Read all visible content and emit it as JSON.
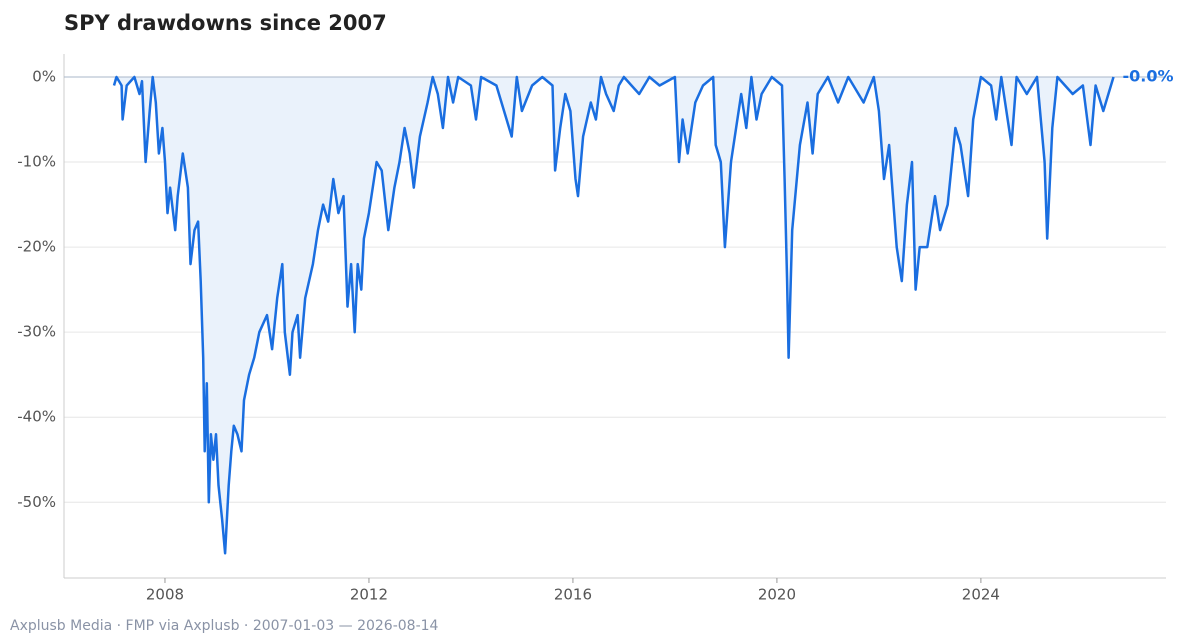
{
  "chart_data": {
    "type": "line",
    "title": "SPY drawdowns since 2007",
    "footer": "Axplusb Media · FMP via Axplusb · 2007-01-03 — 2026-08-14",
    "x": [
      2007.0,
      2007.05,
      2007.15,
      2007.17,
      2007.25,
      2007.4,
      2007.5,
      2007.55,
      2007.62,
      2007.7,
      2007.76,
      2007.82,
      2007.88,
      2007.95,
      2008.0,
      2008.05,
      2008.1,
      2008.2,
      2008.25,
      2008.35,
      2008.45,
      2008.5,
      2008.58,
      2008.65,
      2008.7,
      2008.75,
      2008.78,
      2008.82,
      2008.86,
      2008.9,
      2008.95,
      2009.0,
      2009.05,
      2009.12,
      2009.18,
      2009.25,
      2009.3,
      2009.35,
      2009.42,
      2009.5,
      2009.55,
      2009.65,
      2009.75,
      2009.85,
      2010.0,
      2010.1,
      2010.2,
      2010.3,
      2010.35,
      2010.45,
      2010.5,
      2010.6,
      2010.65,
      2010.75,
      2010.9,
      2011.0,
      2011.1,
      2011.2,
      2011.3,
      2011.4,
      2011.5,
      2011.58,
      2011.65,
      2011.72,
      2011.78,
      2011.85,
      2011.9,
      2012.0,
      2012.15,
      2012.25,
      2012.38,
      2012.5,
      2012.6,
      2012.7,
      2012.8,
      2012.88,
      2013.0,
      2013.15,
      2013.25,
      2013.35,
      2013.45,
      2013.55,
      2013.65,
      2013.75,
      2014.0,
      2014.1,
      2014.2,
      2014.5,
      2014.6,
      2014.8,
      2014.9,
      2015.0,
      2015.2,
      2015.4,
      2015.6,
      2015.65,
      2015.75,
      2015.85,
      2015.95,
      2016.05,
      2016.1,
      2016.2,
      2016.35,
      2016.45,
      2016.55,
      2016.65,
      2016.8,
      2016.9,
      2017.0,
      2017.3,
      2017.5,
      2017.7,
      2018.0,
      2018.08,
      2018.15,
      2018.25,
      2018.4,
      2018.55,
      2018.75,
      2018.8,
      2018.9,
      2018.98,
      2019.1,
      2019.3,
      2019.4,
      2019.5,
      2019.6,
      2019.7,
      2019.9,
      2020.1,
      2020.15,
      2020.2,
      2020.23,
      2020.3,
      2020.45,
      2020.6,
      2020.7,
      2020.8,
      2021.0,
      2021.2,
      2021.4,
      2021.7,
      2021.9,
      2022.0,
      2022.1,
      2022.2,
      2022.35,
      2022.45,
      2022.55,
      2022.65,
      2022.72,
      2022.8,
      2022.95,
      2023.1,
      2023.2,
      2023.35,
      2023.5,
      2023.6,
      2023.75,
      2023.85,
      2024.0,
      2024.2,
      2024.3,
      2024.4,
      2024.6,
      2024.7,
      2024.9,
      2025.1,
      2025.25,
      2025.3,
      2025.4,
      2025.5,
      2025.8,
      2026.0,
      2026.15,
      2026.25,
      2026.4,
      2026.6
    ],
    "series": [
      {
        "color": "#1a6ee0",
        "fill": "#eaf2fb",
        "values": [
          -1,
          0,
          -1,
          -5,
          -1,
          0,
          -2,
          -0.5,
          -10,
          -4,
          0,
          -3,
          -9,
          -6,
          -10,
          -16,
          -13,
          -18,
          -14,
          -9,
          -13,
          -22,
          -18,
          -17,
          -24,
          -33,
          -44,
          -36,
          -50,
          -42,
          -45,
          -42,
          -48,
          -52,
          -56,
          -48,
          -44,
          -41,
          -42,
          -44,
          -38,
          -35,
          -33,
          -30,
          -28,
          -32,
          -26,
          -22,
          -30,
          -35,
          -30,
          -28,
          -33,
          -26,
          -22,
          -18,
          -15,
          -17,
          -12,
          -16,
          -14,
          -27,
          -22,
          -30,
          -22,
          -25,
          -19,
          -16,
          -10,
          -11,
          -18,
          -13,
          -10,
          -6,
          -9,
          -13,
          -7,
          -3,
          0,
          -2,
          -6,
          0,
          -3,
          0,
          -1,
          -5,
          0,
          -1,
          -3,
          -7,
          0,
          -4,
          -1,
          0,
          -1,
          -11,
          -6,
          -2,
          -4,
          -12,
          -14,
          -7,
          -3,
          -5,
          0,
          -2,
          -4,
          -1,
          0,
          -2,
          0,
          -1,
          0,
          -10,
          -5,
          -9,
          -3,
          -1,
          0,
          -8,
          -10,
          -20,
          -10,
          -2,
          -6,
          0,
          -5,
          -2,
          0,
          -1,
          -12,
          -24,
          -33,
          -18,
          -8,
          -3,
          -9,
          -2,
          0,
          -3,
          0,
          -3,
          0,
          -4,
          -12,
          -8,
          -20,
          -24,
          -15,
          -10,
          -25,
          -20,
          -20,
          -14,
          -18,
          -15,
          -6,
          -8,
          -14,
          -5,
          0,
          -1,
          -5,
          0,
          -8,
          0,
          -2,
          0,
          -10,
          -19,
          -6,
          0,
          -2,
          -1,
          -8,
          -1,
          -4,
          0
        ]
      }
    ],
    "end_label": {
      "value": 0,
      "label": "-0.0%"
    },
    "xlim": [
      2006.02,
      2027.63
    ],
    "xticks": [
      2008,
      2012,
      2016,
      2020,
      2024
    ],
    "ylim": [
      -58.9,
      2.7
    ],
    "yticks": [
      {
        "value": 0,
        "label": "0%"
      },
      {
        "value": -10,
        "label": "-10%"
      },
      {
        "value": -20,
        "label": "-20%"
      },
      {
        "value": -30,
        "label": "-30%"
      },
      {
        "value": -40,
        "label": "-40%"
      },
      {
        "value": -50,
        "label": "-50%"
      }
    ],
    "grid": true
  }
}
